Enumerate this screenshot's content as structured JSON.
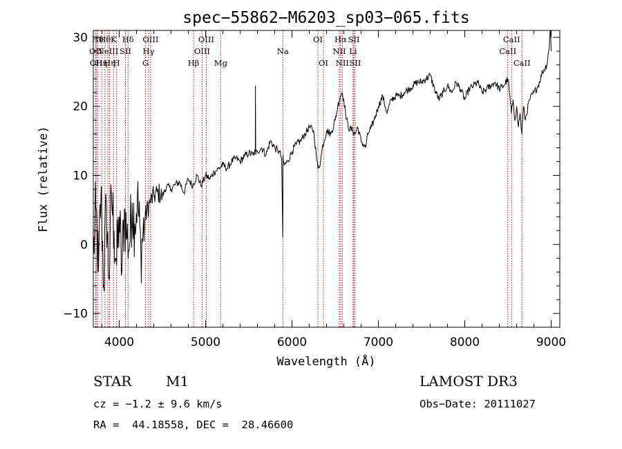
{
  "chart_data": {
    "type": "line",
    "title": "spec−55862−M6203_sp03−065.fits",
    "xlabel": "Wavelength (Å)",
    "ylabel": "Flux (relative)",
    "xlim": [
      3700,
      9100
    ],
    "ylim": [
      -12,
      31
    ],
    "xticks": [
      4000,
      5000,
      6000,
      7000,
      8000,
      9000
    ],
    "xtick_labels": [
      "4000",
      "5000",
      "6000",
      "7000",
      "8000",
      "9000"
    ],
    "yticks": [
      -10,
      0,
      10,
      20,
      30
    ],
    "ytick_labels": [
      "−10",
      "0",
      "10",
      "20",
      "30"
    ],
    "grid": false,
    "series": [
      {
        "name": "flux",
        "x": [
          3700,
          3730,
          3760,
          3790,
          3820,
          3850,
          3880,
          3910,
          3940,
          3970,
          4000,
          4030,
          4060,
          4090,
          4120,
          4150,
          4180,
          4210,
          4250,
          4300,
          4350,
          4400,
          4450,
          4500,
          4550,
          4600,
          4650,
          4700,
          4750,
          4800,
          4850,
          4900,
          4950,
          5000,
          5050,
          5100,
          5150,
          5200,
          5250,
          5300,
          5350,
          5400,
          5450,
          5500,
          5550,
          5575,
          5577,
          5580,
          5600,
          5650,
          5700,
          5750,
          5800,
          5850,
          5880,
          5893,
          5896,
          5900,
          5910,
          5950,
          6000,
          6050,
          6100,
          6150,
          6200,
          6250,
          6280,
          6300,
          6330,
          6350,
          6400,
          6450,
          6500,
          6530,
          6560,
          6580,
          6600,
          6620,
          6650,
          6700,
          6730,
          6760,
          6800,
          6850,
          6880,
          6920,
          6950,
          7000,
          7050,
          7100,
          7150,
          7200,
          7250,
          7300,
          7350,
          7400,
          7450,
          7500,
          7550,
          7600,
          7650,
          7700,
          7750,
          7800,
          7850,
          7900,
          7950,
          8000,
          8050,
          8100,
          8150,
          8200,
          8250,
          8300,
          8350,
          8400,
          8450,
          8500,
          8540,
          8560,
          8580,
          8600,
          8620,
          8640,
          8660,
          8680,
          8700,
          8750,
          8800,
          8850,
          8900,
          8950,
          8970,
          8980,
          8990,
          9000
        ],
        "y": [
          -2,
          5,
          -4,
          8,
          -6,
          6,
          -5,
          7,
          2,
          -3,
          4,
          -4,
          5,
          1,
          0,
          6,
          3,
          7,
          -1,
          4,
          6,
          7,
          7.5,
          7,
          8.5,
          8,
          8.7,
          9,
          7.5,
          9.5,
          8.5,
          10,
          8.5,
          10,
          9.5,
          10.5,
          11,
          11.5,
          11,
          12,
          12.5,
          12,
          12.8,
          13.2,
          13,
          13.5,
          23,
          13,
          13.5,
          14,
          13,
          15,
          14,
          13.5,
          12.5,
          1,
          13,
          12,
          11.5,
          12,
          13.5,
          14.5,
          15,
          16,
          17,
          16.5,
          13,
          11,
          12,
          14,
          16.5,
          16,
          18,
          20,
          21.5,
          22,
          21,
          19,
          17,
          16.5,
          16,
          17,
          15,
          14,
          16,
          17,
          18,
          20,
          21.5,
          19,
          21,
          21.5,
          21.5,
          22,
          22.5,
          23,
          23.5,
          23.5,
          24,
          24.5,
          22.5,
          21,
          22,
          23,
          22,
          23.5,
          22.5,
          21,
          22.5,
          23,
          23.5,
          22,
          22.5,
          23,
          23.5,
          22.5,
          23,
          24,
          19,
          21,
          18,
          20,
          17,
          19,
          16,
          20,
          18,
          21,
          22,
          23,
          25,
          26,
          28,
          29,
          32,
          28
        ]
      }
    ],
    "lines": [
      {
        "x": 3727,
        "label": "OII",
        "row": 2
      },
      {
        "x": 3733,
        "label": "OII",
        "row": 3
      },
      {
        "x": 3750,
        "label": "Hθ",
        "row": 1
      },
      {
        "x": 3797,
        "label": "Hη",
        "row": 3
      },
      {
        "x": 3835,
        "label": "Hθ",
        "row": 1
      },
      {
        "x": 3869,
        "label": "NeIII",
        "row": 2
      },
      {
        "x": 3889,
        "label": "Hη",
        "row": 3
      },
      {
        "x": 3934,
        "label": "K",
        "row": 1
      },
      {
        "x": 3969,
        "label": "H",
        "row": 3
      },
      {
        "x": 4072,
        "label": "SII",
        "row": 2
      },
      {
        "x": 4102,
        "label": "Hδ",
        "row": 1
      },
      {
        "x": 4305,
        "label": "G",
        "row": 3
      },
      {
        "x": 4340,
        "label": "Hγ",
        "row": 2
      },
      {
        "x": 4363,
        "label": "OIII",
        "row": 1
      },
      {
        "x": 4861,
        "label": "Hβ",
        "row": 3
      },
      {
        "x": 4959,
        "label": "OIII",
        "row": 2
      },
      {
        "x": 5007,
        "label": "OIII",
        "row": 1
      },
      {
        "x": 5175,
        "label": "Mg",
        "row": 3
      },
      {
        "x": 5894,
        "label": "Na",
        "row": 2
      },
      {
        "x": 6300,
        "label": "OI",
        "row": 1
      },
      {
        "x": 6364,
        "label": "OI",
        "row": 3
      },
      {
        "x": 6548,
        "label": "NII",
        "row": 2
      },
      {
        "x": 6563,
        "label": "Hα",
        "row": 1
      },
      {
        "x": 6583,
        "label": "NII",
        "row": 3
      },
      {
        "x": 6707,
        "label": "Li",
        "row": 2
      },
      {
        "x": 6716,
        "label": "SII",
        "row": 1
      },
      {
        "x": 6731,
        "label": "SII",
        "row": 3
      },
      {
        "x": 8498,
        "label": "CaII",
        "row": 2
      },
      {
        "x": 8542,
        "label": "CaII",
        "row": 1
      },
      {
        "x": 8662,
        "label": "CaII",
        "row": 3
      }
    ]
  },
  "info": {
    "class_label": "STAR",
    "subclass_label": "M1",
    "survey_label": "LAMOST DR3",
    "cz_text": "cz = −1.2 ± 9.6 km/s",
    "obs_date_text": "Obs−Date: 20111027",
    "radec_text": "RA =  44.18558, DEC =  28.46600"
  },
  "colors": {
    "spectrum": "#000000",
    "line_markers": "#cc0000",
    "axes": "#000000"
  }
}
